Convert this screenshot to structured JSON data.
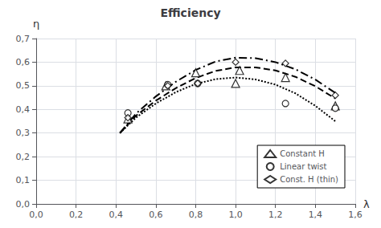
{
  "chart_data": {
    "type": "line",
    "title": "Efficiency",
    "xlabel": "λ",
    "ylabel": "η",
    "xlim": [
      0,
      1.6
    ],
    "ylim": [
      0,
      0.7
    ],
    "xticks": [
      {
        "value": 0,
        "label": "0,0"
      },
      {
        "value": 0.2,
        "label": "0,2"
      },
      {
        "value": 0.4,
        "label": "0,4"
      },
      {
        "value": 0.6,
        "label": "0,6"
      },
      {
        "value": 0.8,
        "label": "0,8"
      },
      {
        "value": 1.0,
        "label": "1,0"
      },
      {
        "value": 1.2,
        "label": "1,2"
      },
      {
        "value": 1.4,
        "label": "1,4"
      },
      {
        "value": 1.6,
        "label": "1,6"
      }
    ],
    "yticks": [
      {
        "value": 0,
        "label": "0,0"
      },
      {
        "value": 0.1,
        "label": "0,1"
      },
      {
        "value": 0.2,
        "label": "0,2"
      },
      {
        "value": 0.3,
        "label": "0,3"
      },
      {
        "value": 0.4,
        "label": "0,4"
      },
      {
        "value": 0.5,
        "label": "0,5"
      },
      {
        "value": 0.6,
        "label": "0,6"
      },
      {
        "value": 0.7,
        "label": "0,7"
      }
    ],
    "grid": true,
    "legend": "lower right",
    "series": [
      {
        "type": "line",
        "line_style": "dotted",
        "color": "#000000",
        "x": [
          0.42,
          0.5,
          0.6,
          0.7,
          0.8,
          0.9,
          1.0,
          1.1,
          1.2,
          1.3,
          1.4,
          1.5
        ],
        "values": [
          0.3,
          0.365,
          0.425,
          0.473,
          0.508,
          0.528,
          0.535,
          0.527,
          0.505,
          0.468,
          0.415,
          0.35
        ]
      },
      {
        "type": "line",
        "line_style": "dashed",
        "color": "#000000",
        "x": [
          0.42,
          0.5,
          0.6,
          0.7,
          0.8,
          0.9,
          1.0,
          1.1,
          1.2,
          1.3,
          1.4,
          1.5
        ],
        "values": [
          0.3,
          0.373,
          0.437,
          0.49,
          0.533,
          0.563,
          0.578,
          0.578,
          0.565,
          0.538,
          0.498,
          0.446
        ]
      },
      {
        "type": "line",
        "line_style": "dashdot",
        "color": "#000000",
        "x": [
          0.42,
          0.5,
          0.6,
          0.7,
          0.8,
          0.9,
          1.0,
          1.1,
          1.2,
          1.3,
          1.4,
          1.5
        ],
        "values": [
          0.3,
          0.382,
          0.455,
          0.517,
          0.567,
          0.603,
          0.619,
          0.617,
          0.6,
          0.57,
          0.526,
          0.47
        ]
      },
      {
        "type": "scatter",
        "name": "Constant H",
        "marker": "triangle",
        "color": "#000000",
        "x": [
          0.46,
          0.65,
          0.8,
          1.0,
          1.02,
          1.25,
          1.5
        ],
        "values": [
          0.36,
          0.5,
          0.555,
          0.51,
          0.565,
          0.535,
          0.415
        ]
      },
      {
        "type": "scatter",
        "name": "Linear twist",
        "marker": "circle",
        "color": "#000000",
        "x": [
          0.46,
          0.66,
          0.81,
          1.25,
          1.5
        ],
        "values": [
          0.385,
          0.505,
          0.51,
          0.425,
          0.405
        ]
      },
      {
        "type": "scatter",
        "name": "Const. H (thin)",
        "marker": "diamond",
        "color": "#000000",
        "x": [
          0.46,
          0.66,
          0.81,
          1.0,
          1.25,
          1.5
        ],
        "values": [
          0.365,
          0.5,
          0.51,
          0.6,
          0.595,
          0.46
        ]
      }
    ]
  }
}
